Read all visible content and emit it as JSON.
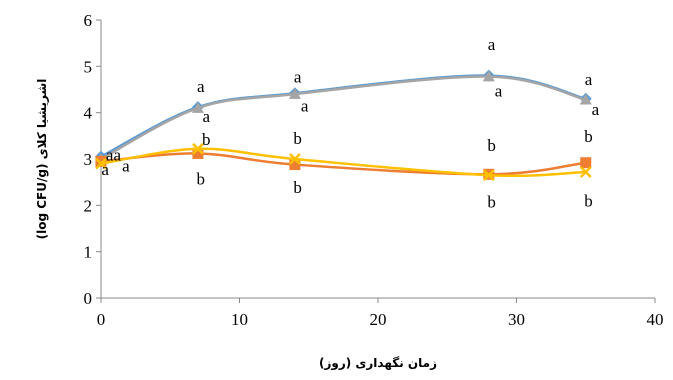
{
  "chart_data": {
    "type": "line",
    "title": "",
    "xlabel": "زمان نگهداری (روز)",
    "ylabel": "اشریشیا کلای (log CFU/g)",
    "xlim": [
      0,
      40
    ],
    "ylim": [
      0,
      6
    ],
    "xticks": [
      "0",
      "10",
      "20",
      "30",
      "40"
    ],
    "yticks": [
      "0",
      "1",
      "2",
      "3",
      "4",
      "5",
      "6"
    ],
    "grid": false,
    "legend": "none",
    "x": [
      0,
      7,
      14,
      28,
      35
    ],
    "series": [
      {
        "values": [
          3.05,
          4.12,
          4.42,
          4.8,
          4.3
        ],
        "color": "#5b9bd5",
        "marker": "diamond"
      },
      {
        "values": [
          3.0,
          4.1,
          4.4,
          4.78,
          4.28
        ],
        "color": "#a5a5a5",
        "marker": "triangle"
      },
      {
        "values": [
          2.95,
          3.12,
          2.88,
          2.67,
          2.92
        ],
        "color": "#ed7d31",
        "marker": "square"
      },
      {
        "values": [
          2.9,
          3.22,
          3.0,
          2.65,
          2.72
        ],
        "color": "#ffc000",
        "marker": "x"
      }
    ],
    "annotations": [
      {
        "text": "aa",
        "x": 0.9,
        "y": 2.97
      },
      {
        "text": "a",
        "x": 0.3,
        "y": 2.65
      },
      {
        "text": "a",
        "x": 1.8,
        "y": 2.73
      },
      {
        "text": "a",
        "x": 7.2,
        "y": 4.45
      },
      {
        "text": "a",
        "x": 7.6,
        "y": 3.8
      },
      {
        "text": "b",
        "x": 7.6,
        "y": 3.3
      },
      {
        "text": "b",
        "x": 7.2,
        "y": 2.45
      },
      {
        "text": "a",
        "x": 14.2,
        "y": 4.65
      },
      {
        "text": "a",
        "x": 14.7,
        "y": 4.02
      },
      {
        "text": "b",
        "x": 14.2,
        "y": 3.32
      },
      {
        "text": "b",
        "x": 14.2,
        "y": 2.27
      },
      {
        "text": "a",
        "x": 28.2,
        "y": 5.35
      },
      {
        "text": "a",
        "x": 28.7,
        "y": 4.35
      },
      {
        "text": "b",
        "x": 28.2,
        "y": 3.17
      },
      {
        "text": "b",
        "x": 28.2,
        "y": 1.95
      },
      {
        "text": "a",
        "x": 35.2,
        "y": 4.6
      },
      {
        "text": "a",
        "x": 35.7,
        "y": 3.95
      },
      {
        "text": "b",
        "x": 35.2,
        "y": 3.37
      },
      {
        "text": "b",
        "x": 35.2,
        "y": 1.97
      }
    ]
  }
}
